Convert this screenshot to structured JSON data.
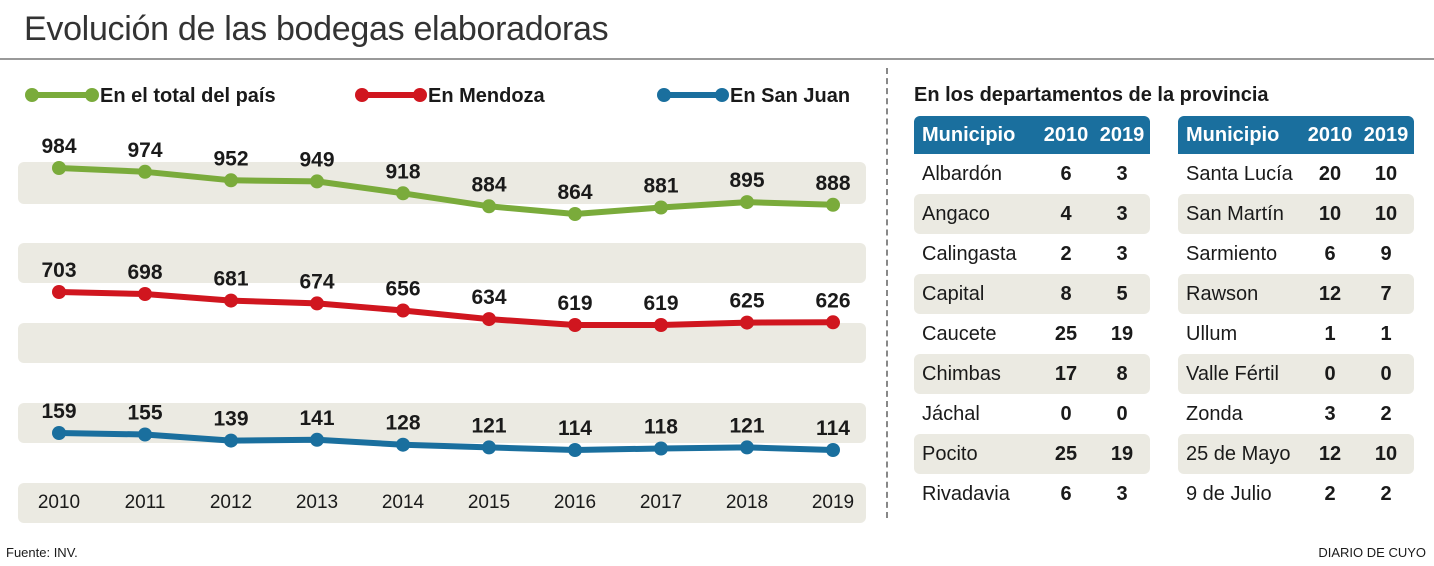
{
  "title": "Evolución de las bodegas elaboradoras",
  "chart_data": {
    "type": "line",
    "x": [
      "2010",
      "2011",
      "2012",
      "2013",
      "2014",
      "2015",
      "2016",
      "2017",
      "2018",
      "2019"
    ],
    "series": [
      {
        "name": "En el total del país",
        "color": "#7aab3b",
        "values": [
          984,
          974,
          952,
          949,
          918,
          884,
          864,
          881,
          895,
          888
        ]
      },
      {
        "name": "En Mendoza",
        "color": "#d0161f",
        "values": [
          703,
          698,
          681,
          674,
          656,
          634,
          619,
          619,
          625,
          626
        ]
      },
      {
        "name": "En San Juan",
        "color": "#1a6f9e",
        "values": [
          159,
          155,
          139,
          141,
          128,
          121,
          114,
          118,
          121,
          114
        ]
      }
    ]
  },
  "table": {
    "title": "En los departamentos de la provincia",
    "headers": [
      "Municipio",
      "2010",
      "2019"
    ],
    "left": [
      [
        "Albardón",
        "6",
        "3"
      ],
      [
        "Angaco",
        "4",
        "3"
      ],
      [
        "Calingasta",
        "2",
        "3"
      ],
      [
        "Capital",
        "8",
        "5"
      ],
      [
        "Caucete",
        "25",
        "19"
      ],
      [
        "Chimbas",
        "17",
        "8"
      ],
      [
        "Jáchal",
        "0",
        "0"
      ],
      [
        "Pocito",
        "25",
        "19"
      ],
      [
        "Rivadavia",
        "6",
        "3"
      ]
    ],
    "right": [
      [
        "Santa Lucía",
        "20",
        "10"
      ],
      [
        "San Martín",
        "10",
        "10"
      ],
      [
        "Sarmiento",
        "6",
        "9"
      ],
      [
        "Rawson",
        "12",
        "7"
      ],
      [
        "Ullum",
        "1",
        "1"
      ],
      [
        "Valle Fértil",
        "0",
        "0"
      ],
      [
        "Zonda",
        "3",
        "2"
      ],
      [
        "25 de Mayo",
        "12",
        "10"
      ],
      [
        "9 de Julio",
        "2",
        "2"
      ]
    ]
  },
  "footer": {
    "source": "Fuente: INV.",
    "brand": "DIARIO DE CUYO"
  }
}
